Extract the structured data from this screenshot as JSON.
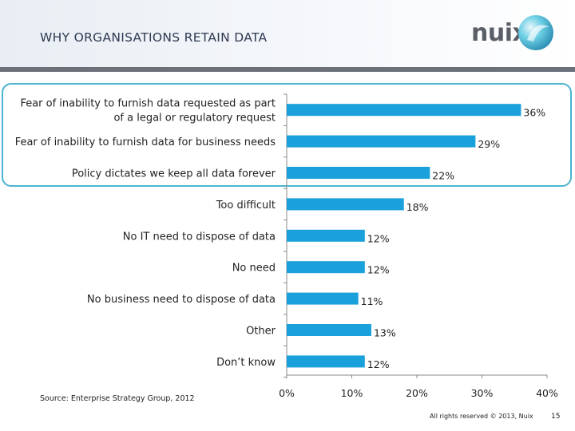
{
  "header": {
    "title": "WHY ORGANISATIONS RETAIN DATA",
    "logo_text": "nuix"
  },
  "chart_data": {
    "type": "bar",
    "orientation": "horizontal",
    "categories": [
      [
        "Fear of inability to furnish data requested as part",
        "of a legal or regulatory request"
      ],
      [
        "Fear of inability to furnish data for business needs"
      ],
      [
        "Policy dictates we keep all data forever"
      ],
      [
        "Too difficult"
      ],
      [
        "No IT need to dispose of data"
      ],
      [
        "No need"
      ],
      [
        "No business need to dispose of data"
      ],
      [
        "Other"
      ],
      [
        "Don’t know"
      ]
    ],
    "values": [
      36,
      29,
      22,
      18,
      12,
      12,
      11,
      13,
      12
    ],
    "value_labels": [
      "36%",
      "29%",
      "22%",
      "18%",
      "12%",
      "12%",
      "11%",
      "13%",
      "12%"
    ],
    "xlim": [
      0,
      40
    ],
    "xticks": [
      0,
      10,
      20,
      30,
      40
    ],
    "xtick_labels": [
      "0%",
      "10%",
      "20%",
      "30%",
      "40%"
    ],
    "bar_color": "#1aa0db",
    "highlight_color": "#4bb4cf",
    "grid": false
  },
  "source": "Source: Enterprise Strategy Group, 2012",
  "footer": {
    "rights": "All rights reserved © 2013, Nuix",
    "page": "15"
  }
}
